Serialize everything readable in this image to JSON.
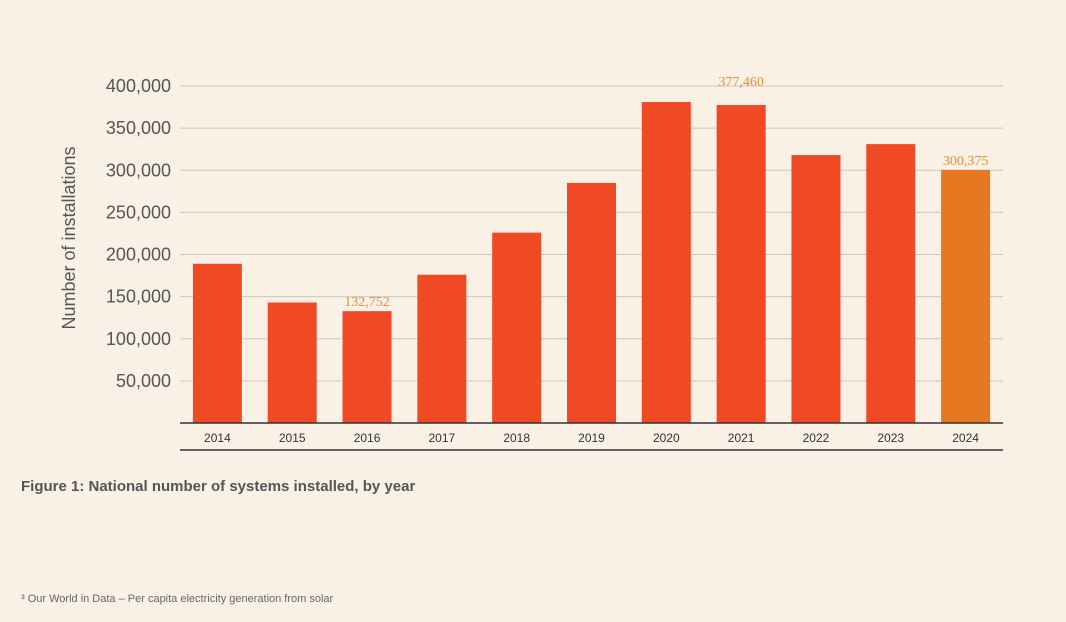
{
  "chart_data": {
    "type": "bar",
    "ylabel": "Number of installations",
    "categories": [
      "2014",
      "2015",
      "2016",
      "2017",
      "2018",
      "2019",
      "2020",
      "2021",
      "2022",
      "2023",
      "2024"
    ],
    "values": [
      189000,
      143000,
      132752,
      176000,
      226000,
      285000,
      381000,
      377460,
      318000,
      331000,
      300375
    ],
    "ylim": [
      0,
      400000
    ],
    "yticks": [
      50000,
      100000,
      150000,
      200000,
      250000,
      300000,
      350000,
      400000
    ],
    "ytick_labels": [
      "50,000",
      "100,000",
      "150,000",
      "200,000",
      "250,000",
      "300,000",
      "350,000",
      "400,000"
    ],
    "data_labels": [
      {
        "index": 2,
        "text": "132,752"
      },
      {
        "index": 7,
        "text": "377,460"
      },
      {
        "index": 10,
        "text": "300,375"
      }
    ],
    "grid": true,
    "colors": {
      "bar": "#ef4a23",
      "highlight_bar": "#e87722",
      "grid": "#cfc6bb",
      "axis": "#333333",
      "data_label": "#e8903c"
    },
    "highlight_index": 10
  },
  "caption": "Figure 1: National number of systems installed, by year",
  "footnote": "³ Our World in Data – Per capita electricity generation from solar"
}
